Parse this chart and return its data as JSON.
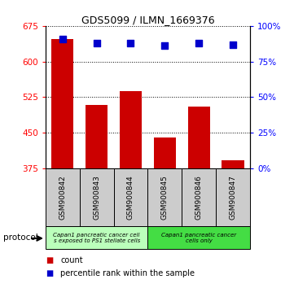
{
  "title": "GDS5099 / ILMN_1669376",
  "samples": [
    "GSM900842",
    "GSM900843",
    "GSM900844",
    "GSM900845",
    "GSM900846",
    "GSM900847"
  ],
  "counts": [
    648,
    508,
    537,
    440,
    505,
    392
  ],
  "percentile_ranks": [
    91,
    88,
    88,
    86,
    88,
    87
  ],
  "ylim_left": [
    375,
    675
  ],
  "ylim_right": [
    0,
    100
  ],
  "yticks_left": [
    375,
    450,
    525,
    600,
    675
  ],
  "yticks_right": [
    0,
    25,
    50,
    75,
    100
  ],
  "bar_color": "#cc0000",
  "dot_color": "#0000cc",
  "background_color": "#ffffff",
  "plot_bg_color": "#ffffff",
  "grid_color": "#000000",
  "protocol_group1_label": "Capan1 pancreatic cancer cell\ns exposed to PS1 stellate cells",
  "protocol_group2_label": "Capan1 pancreatic cancer\ncells only",
  "protocol_group1_color": "#bbffbb",
  "protocol_group2_color": "#44dd44",
  "sample_box_color": "#cccccc",
  "legend_count_label": "count",
  "legend_pct_label": "percentile rank within the sample",
  "protocol_label": "protocol"
}
